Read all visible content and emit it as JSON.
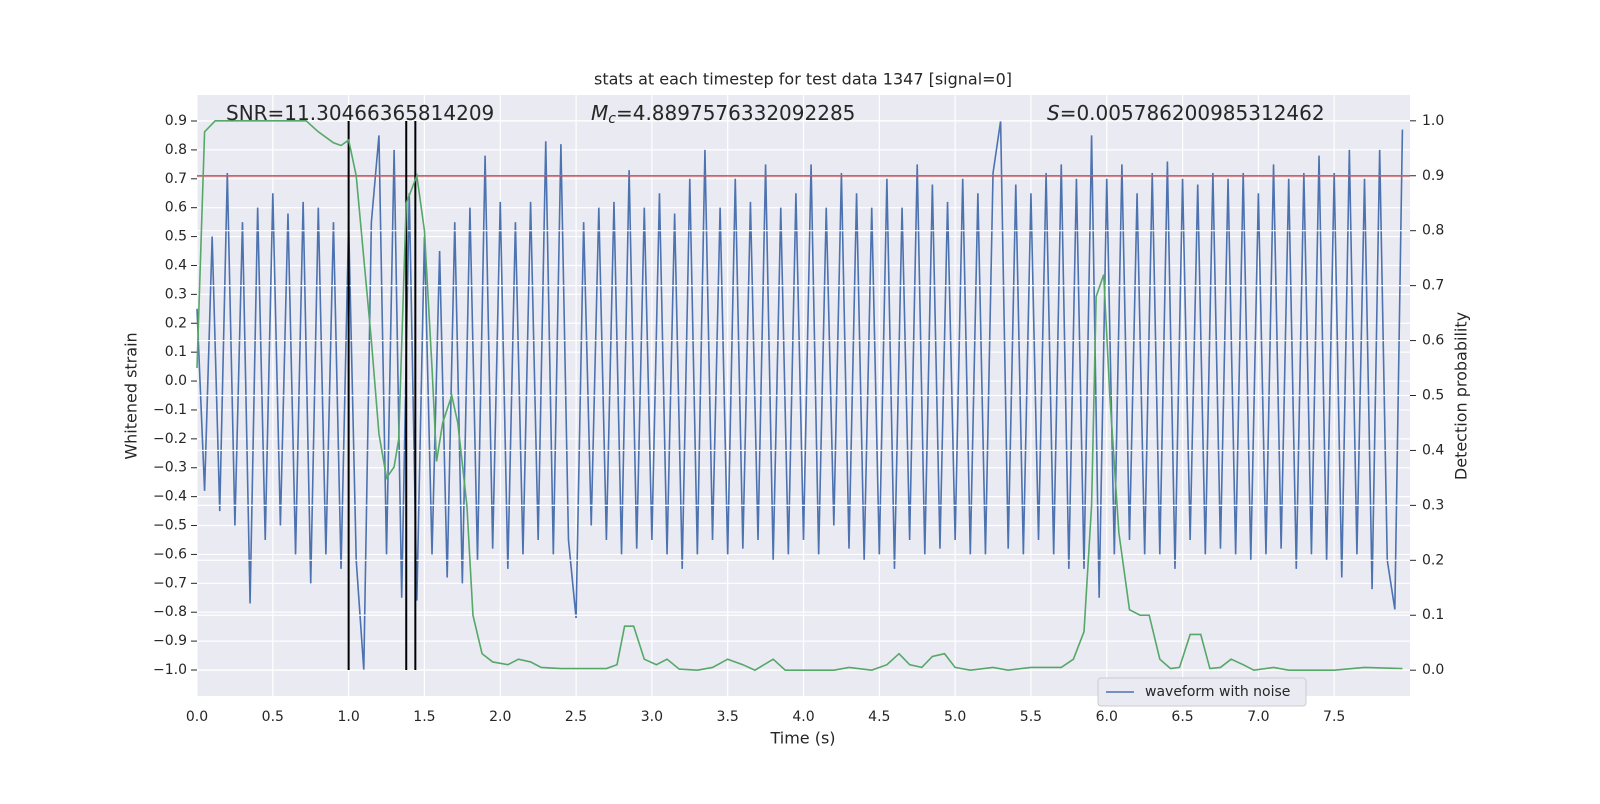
{
  "chart_data": {
    "type": "line",
    "title": "stats at each timestep for test data 1347 [signal=0]",
    "xlabel": "Time (s)",
    "ylabel": "Whitened strain",
    "y2label": "Detection probability",
    "annotations": [
      {
        "text": "SNR=11.30466365814209"
      },
      {
        "symbol": "M",
        "subscript": "c",
        "text": "=4.8897576332092285"
      },
      {
        "symbol": "S",
        "text": "=0.005786200985312462"
      }
    ],
    "xlim": [
      0,
      8.0
    ],
    "ylim": [
      -1.09,
      0.99
    ],
    "y2lim": [
      -0.047,
      1.047
    ],
    "xticks": [
      {
        "value": 0,
        "label": "0.0"
      },
      0.5,
      {
        "value": 1,
        "label": "1.0"
      },
      1.5,
      {
        "value": 2,
        "label": "2.0"
      },
      2.5,
      {
        "value": 3,
        "label": "3.0"
      },
      3.5,
      {
        "value": 4,
        "label": "4.0"
      },
      4.5,
      {
        "value": 5,
        "label": "5.0"
      },
      5.5,
      {
        "value": 6,
        "label": "6.0"
      },
      6.5,
      {
        "value": 7,
        "label": "7.0"
      },
      7.5
    ],
    "yticks": [
      {
        "value": -1,
        "label": "−1.0"
      },
      {
        "value": -0.9,
        "label": "−0.9"
      },
      {
        "value": -0.8,
        "label": "−0.8"
      },
      {
        "value": -0.7,
        "label": "−0.7"
      },
      {
        "value": -0.6,
        "label": "−0.6"
      },
      {
        "value": -0.5,
        "label": "−0.5"
      },
      {
        "value": -0.4,
        "label": "−0.4"
      },
      {
        "value": -0.3,
        "label": "−0.3"
      },
      {
        "value": -0.2,
        "label": "−0.2"
      },
      {
        "value": -0.1,
        "label": "−0.1"
      },
      {
        "value": 0,
        "label": "0.0"
      },
      0.1,
      0.2,
      0.3,
      0.4,
      0.5,
      0.6,
      0.7,
      0.8,
      0.9
    ],
    "y2ticks": [
      {
        "value": 0,
        "label": "0.0"
      },
      0.1,
      0.2,
      0.3,
      0.4,
      0.5,
      0.6,
      0.7,
      0.8,
      0.9,
      {
        "value": 1,
        "label": "1.0"
      }
    ],
    "grid": true,
    "legend": "lower right",
    "hline": {
      "value": 0.71,
      "color": "#c44e52"
    },
    "vlines": {
      "values": [
        1.0,
        1.38,
        1.44
      ],
      "color": "#000000"
    },
    "series": [
      {
        "name": "waveform with noise",
        "color": "#4c72b0",
        "x": [
          0,
          0.05,
          0.1,
          0.15,
          0.2,
          0.25,
          0.3,
          0.35,
          0.4,
          0.45,
          0.5,
          0.55,
          0.6,
          0.65,
          0.7,
          0.75,
          0.8,
          0.85,
          0.9,
          0.95,
          1,
          1.05,
          1.1,
          1.15,
          1.2,
          1.25,
          1.3,
          1.35,
          1.4,
          1.45,
          1.5,
          1.55,
          1.6,
          1.65,
          1.7,
          1.75,
          1.8,
          1.85,
          1.9,
          1.95,
          2,
          2.05,
          2.1,
          2.15,
          2.2,
          2.25,
          2.3,
          2.35,
          2.4,
          2.45,
          2.5,
          2.55,
          2.6,
          2.65,
          2.7,
          2.75,
          2.8,
          2.85,
          2.9,
          2.95,
          3,
          3.05,
          3.1,
          3.15,
          3.2,
          3.25,
          3.3,
          3.35,
          3.4,
          3.45,
          3.5,
          3.55,
          3.6,
          3.65,
          3.7,
          3.75,
          3.8,
          3.85,
          3.9,
          3.95,
          4,
          4.05,
          4.1,
          4.15,
          4.2,
          4.25,
          4.3,
          4.35,
          4.4,
          4.45,
          4.5,
          4.55,
          4.6,
          4.65,
          4.7,
          4.75,
          4.8,
          4.85,
          4.9,
          4.95,
          5,
          5.05,
          5.1,
          5.15,
          5.2,
          5.25,
          5.3,
          5.35,
          5.4,
          5.45,
          5.5,
          5.55,
          5.6,
          5.65,
          5.7,
          5.75,
          5.8,
          5.85,
          5.9,
          5.95,
          6,
          6.05,
          6.1,
          6.15,
          6.2,
          6.25,
          6.3,
          6.35,
          6.4,
          6.45,
          6.5,
          6.55,
          6.6,
          6.65,
          6.7,
          6.75,
          6.8,
          6.85,
          6.9,
          6.95,
          7,
          7.05,
          7.1,
          7.15,
          7.2,
          7.25,
          7.3,
          7.35,
          7.4,
          7.45,
          7.5,
          7.55,
          7.6,
          7.65,
          7.7,
          7.75,
          7.8,
          7.85,
          7.9,
          7.95
        ],
        "values": [
          0.25,
          -0.38,
          0.5,
          -0.45,
          0.72,
          -0.5,
          0.55,
          -0.77,
          0.6,
          -0.55,
          0.65,
          -0.5,
          0.58,
          -0.6,
          0.62,
          -0.7,
          0.6,
          -0.6,
          0.55,
          -0.65,
          0.55,
          -0.62,
          -1.0,
          0.55,
          0.85,
          -0.6,
          0.8,
          -0.75,
          0.65,
          -0.76,
          0.5,
          -0.6,
          0.45,
          -0.68,
          0.55,
          -0.7,
          0.6,
          -0.62,
          0.78,
          -0.58,
          0.62,
          -0.65,
          0.55,
          -0.6,
          0.62,
          -0.55,
          0.83,
          -0.6,
          0.82,
          -0.55,
          -0.82,
          0.55,
          -0.5,
          0.6,
          -0.55,
          0.62,
          -0.6,
          0.73,
          -0.58,
          0.6,
          -0.55,
          0.65,
          -0.6,
          0.58,
          -0.65,
          0.7,
          -0.6,
          0.8,
          -0.55,
          0.6,
          -0.6,
          0.7,
          -0.58,
          0.62,
          -0.55,
          0.75,
          -0.62,
          0.6,
          -0.6,
          0.65,
          -0.55,
          0.75,
          -0.6,
          0.6,
          -0.5,
          0.72,
          -0.58,
          0.65,
          -0.62,
          0.6,
          -0.6,
          0.7,
          -0.65,
          0.6,
          -0.55,
          0.75,
          -0.6,
          0.68,
          -0.58,
          0.62,
          -0.55,
          0.7,
          -0.6,
          0.65,
          -0.6,
          0.72,
          0.9,
          -0.58,
          0.68,
          -0.6,
          0.65,
          -0.55,
          0.72,
          -0.6,
          0.75,
          -0.65,
          0.7,
          -0.65,
          0.85,
          -0.75,
          0.7,
          -0.6,
          0.75,
          -0.55,
          0.65,
          -0.6,
          0.72,
          -0.6,
          0.76,
          -0.65,
          0.7,
          -0.55,
          0.68,
          -0.6,
          0.72,
          -0.58,
          0.7,
          -0.6,
          0.72,
          -0.62,
          0.65,
          -0.6,
          0.75,
          -0.58,
          0.7,
          -0.65,
          0.72,
          -0.6,
          0.78,
          -0.62,
          0.72,
          -0.68,
          0.8,
          -0.6,
          0.7,
          -0.72,
          0.8,
          -0.62,
          -0.79,
          0.87
        ]
      },
      {
        "color": "#55a868",
        "axis": "y2",
        "x": [
          0,
          0.05,
          0.12,
          0.3,
          0.5,
          0.72,
          0.8,
          0.9,
          0.95,
          1.0,
          1.05,
          1.1,
          1.15,
          1.2,
          1.25,
          1.3,
          1.33,
          1.38,
          1.45,
          1.5,
          1.55,
          1.58,
          1.62,
          1.68,
          1.72,
          1.78,
          1.82,
          1.88,
          1.95,
          2.05,
          2.12,
          2.2,
          2.27,
          2.4,
          2.55,
          2.7,
          2.77,
          2.82,
          2.88,
          2.95,
          3.03,
          3.1,
          3.18,
          3.3,
          3.4,
          3.5,
          3.6,
          3.68,
          3.8,
          3.88,
          4.0,
          4.2,
          4.3,
          4.45,
          4.55,
          4.63,
          4.7,
          4.78,
          4.85,
          4.93,
          5.0,
          5.1,
          5.25,
          5.35,
          5.5,
          5.7,
          5.78,
          5.85,
          5.9,
          5.93,
          5.98,
          6.02,
          6.08,
          6.15,
          6.22,
          6.28,
          6.35,
          6.42,
          6.48,
          6.55,
          6.62,
          6.68,
          6.75,
          6.82,
          6.9,
          6.97,
          7.1,
          7.2,
          7.5,
          7.7,
          7.95
        ],
        "values": [
          0.55,
          0.98,
          1.0,
          1.0,
          1.0,
          1.0,
          0.98,
          0.96,
          0.955,
          0.965,
          0.9,
          0.75,
          0.6,
          0.43,
          0.35,
          0.37,
          0.42,
          0.85,
          0.9,
          0.8,
          0.55,
          0.38,
          0.45,
          0.5,
          0.45,
          0.3,
          0.1,
          0.03,
          0.015,
          0.01,
          0.02,
          0.015,
          0.005,
          0.003,
          0.003,
          0.003,
          0.01,
          0.08,
          0.08,
          0.02,
          0.01,
          0.02,
          0.002,
          0.0,
          0.005,
          0.02,
          0.01,
          0.0,
          0.02,
          0.0,
          0.0,
          0.0,
          0.005,
          0.0,
          0.01,
          0.03,
          0.01,
          0.005,
          0.025,
          0.03,
          0.005,
          0.0,
          0.005,
          0.0,
          0.005,
          0.005,
          0.02,
          0.07,
          0.3,
          0.68,
          0.72,
          0.5,
          0.25,
          0.11,
          0.1,
          0.1,
          0.02,
          0.003,
          0.005,
          0.065,
          0.065,
          0.003,
          0.005,
          0.02,
          0.01,
          0.0,
          0.005,
          0.0,
          0.0,
          0.005,
          0.003
        ]
      }
    ]
  }
}
